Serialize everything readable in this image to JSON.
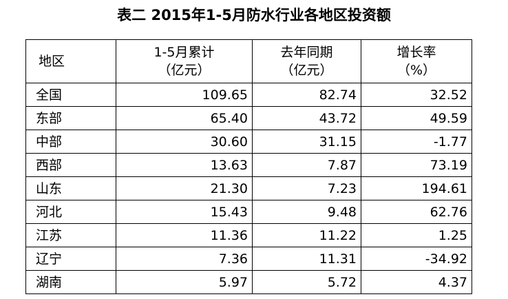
{
  "title": "表二 2015年1-5月防水行业各地区投资额",
  "table": {
    "header": [
      [
        "地区"
      ],
      [
        "1-5月累计",
        "（亿元）"
      ],
      [
        "去年同期",
        "（亿元）"
      ],
      [
        "增长率",
        "（%）"
      ]
    ],
    "rows": [
      [
        "全国",
        "109.65",
        "82.74",
        "32.52"
      ],
      [
        "东部",
        "65.40",
        "43.72",
        "49.59"
      ],
      [
        "中部",
        "30.60",
        "31.15",
        "-1.77"
      ],
      [
        "西部",
        "13.63",
        "7.87",
        "73.19"
      ],
      [
        "山东",
        "21.30",
        "7.23",
        "194.61"
      ],
      [
        "河北",
        "15.43",
        "9.48",
        "62.76"
      ],
      [
        "江苏",
        "11.36",
        "11.22",
        "1.25"
      ],
      [
        "辽宁",
        "7.36",
        "11.31",
        "-34.92"
      ],
      [
        "湖南",
        "5.97",
        "5.72",
        "4.37"
      ]
    ]
  }
}
